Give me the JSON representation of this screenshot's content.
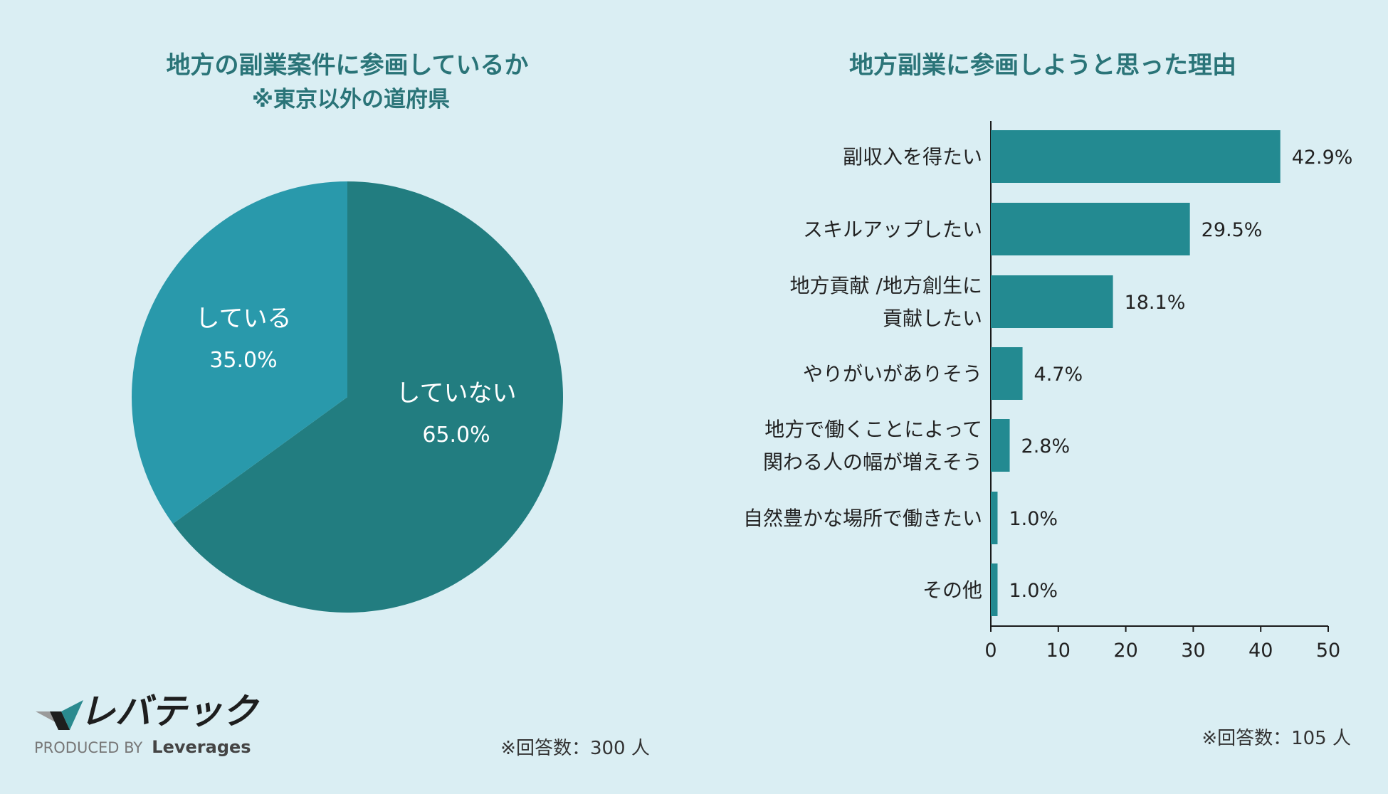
{
  "colors": {
    "background": "#daeef3",
    "pie_not": "#227d80",
    "pie_yes": "#2999ab",
    "bar": "#238a91",
    "title": "#2a7478"
  },
  "chart_data": [
    {
      "type": "pie",
      "title": "地方の副業案件に参画しているか",
      "subtitle": "※東京以外の道府県",
      "slices": [
        {
          "label": "していない",
          "value": 65.0,
          "display": "65.0%"
        },
        {
          "label": "している",
          "value": 35.0,
          "display": "35.0%"
        }
      ],
      "note": "※回答数：300 人"
    },
    {
      "type": "bar",
      "orientation": "horizontal",
      "title": "地方副業に参画しようと思った理由",
      "categories": [
        [
          "副収入を得たい"
        ],
        [
          "スキルアップしたい"
        ],
        [
          "地方貢献 /地方創生に",
          "貢献したい"
        ],
        [
          "やりがいがありそう"
        ],
        [
          "地方で働くことによって",
          "関わる人の幅が増えそう"
        ],
        [
          "自然豊かな場所で働きたい"
        ],
        [
          "その他"
        ]
      ],
      "values": [
        42.9,
        29.5,
        18.1,
        4.7,
        2.8,
        1.0,
        1.0
      ],
      "value_labels": [
        "42.9%",
        "29.5%",
        "18.1%",
        "4.7%",
        "2.8%",
        "1.0%",
        "1.0%"
      ],
      "xlim": [
        0,
        50
      ],
      "ticks": [
        0,
        10,
        20,
        30,
        40,
        50
      ],
      "tick_labels": [
        "0",
        "10",
        "20",
        "30",
        "40",
        "50"
      ],
      "note": "※回答数：105 人"
    }
  ],
  "logo": {
    "name": "レバテック",
    "tagline_prefix": "PRODUCED BY",
    "tagline_brand": "Leverages"
  }
}
